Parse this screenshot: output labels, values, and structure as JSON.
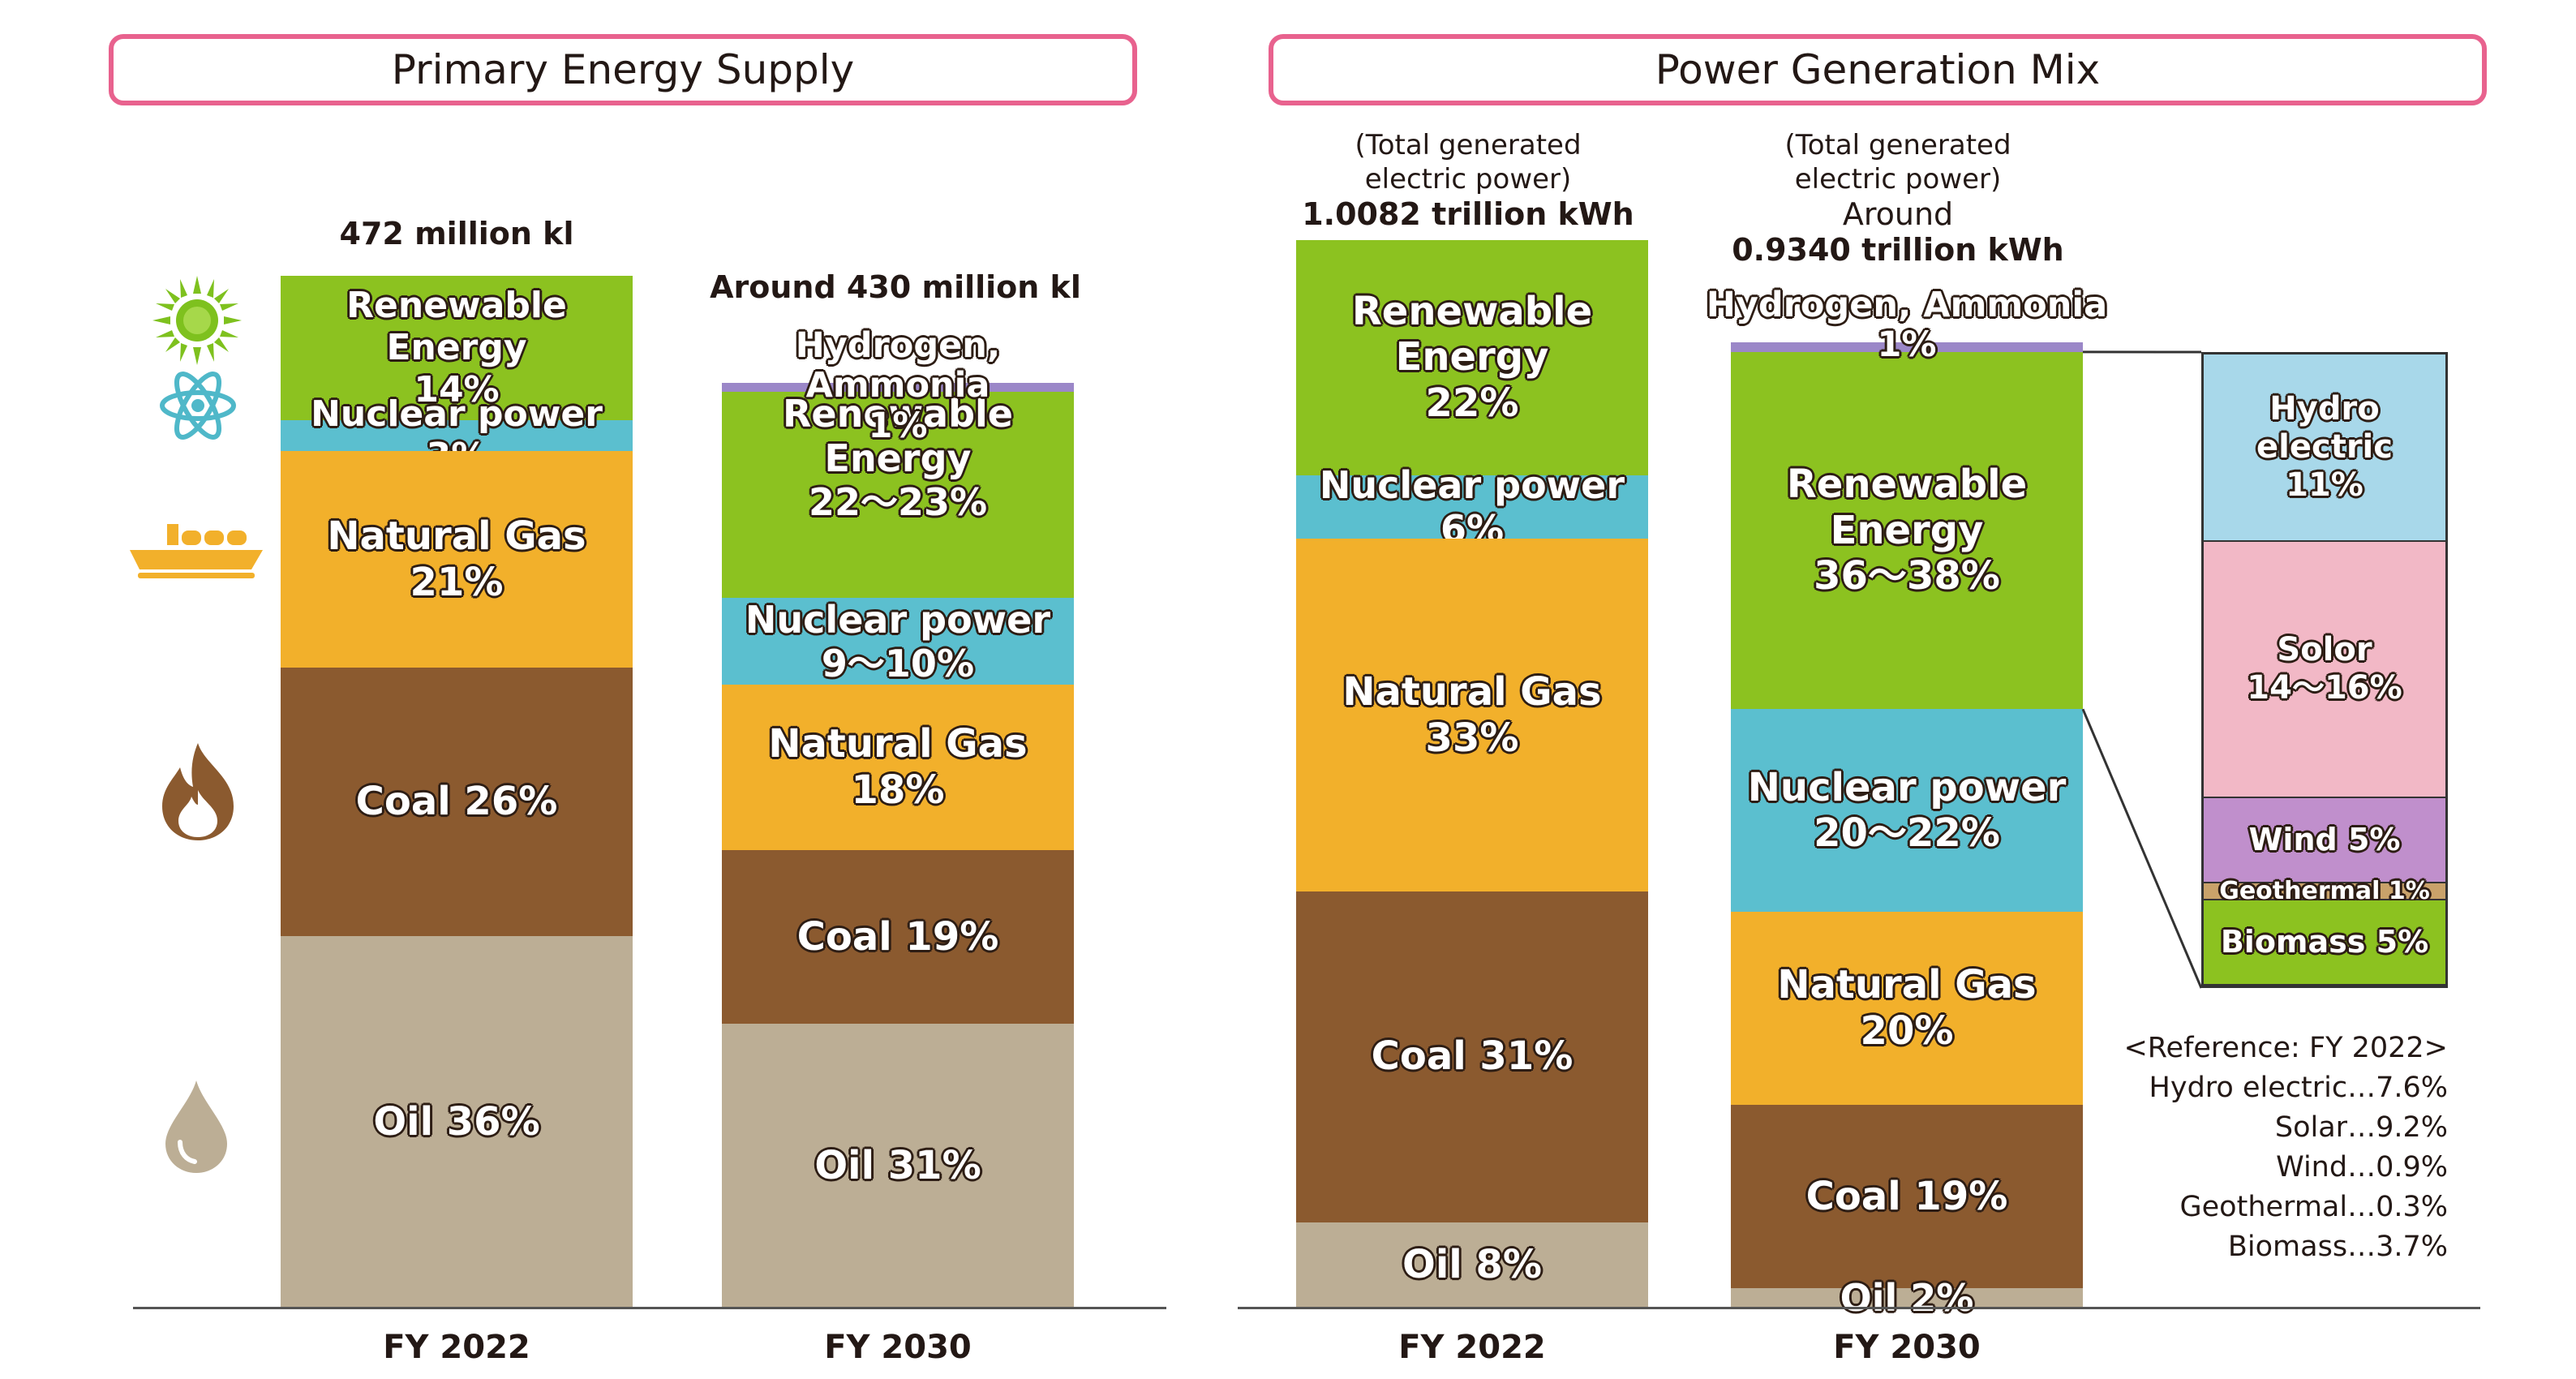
{
  "colors": {
    "renewable": "#8cc220",
    "nuclear": "#5bbfcf",
    "gas": "#f2b02b",
    "coal": "#8b5a2f",
    "oil": "#bcae95",
    "hydrogen": "#9b87c8",
    "hydro": "#a8d8ea",
    "solar": "#f2b8c6",
    "wind": "#c08fcc",
    "geothermal": "#c9a26a",
    "biomass": "#8cc220",
    "frame": "#e8628e"
  },
  "icons": [
    "sun-icon",
    "atom-icon",
    "lng-tanker-icon",
    "flame-icon",
    "oil-drop-icon"
  ],
  "primary": {
    "title": "Primary Energy Supply",
    "fy2022": {
      "label": "FY 2022",
      "total": "472 million kl",
      "segments": [
        {
          "text": "Renewable Energy\n14%",
          "value": 14
        },
        {
          "text": "Nuclear power 3%",
          "value": 3
        },
        {
          "text": "Natural Gas\n21%",
          "value": 21
        },
        {
          "text": "Coal 26%",
          "value": 26
        },
        {
          "text": "Oil 36%",
          "value": 36
        }
      ]
    },
    "fy2030": {
      "label": "FY 2030",
      "total": "Around 430 million kl",
      "segments": [
        {
          "text": "Hydrogen, Ammonia\n1%",
          "value": 1
        },
        {
          "text": "Renewable Energy\n22～23%",
          "value": 22.5
        },
        {
          "text": "Nuclear power\n9～10%",
          "value": 9.5
        },
        {
          "text": "Natural Gas\n18%",
          "value": 18
        },
        {
          "text": "Coal 19%",
          "value": 19
        },
        {
          "text": "Oil 31%",
          "value": 31
        }
      ]
    }
  },
  "power": {
    "title": "Power Generation Mix",
    "fy2022": {
      "label": "FY 2022",
      "note": "(Total generated\nelectric power)",
      "total": "1.0082 trillion kWh",
      "segments": [
        {
          "text": "Renewable\nEnergy\n22%",
          "value": 22
        },
        {
          "text": "Nuclear power 6%",
          "value": 6
        },
        {
          "text": "Natural Gas\n33%",
          "value": 33
        },
        {
          "text": "Coal 31%",
          "value": 31
        },
        {
          "text": "Oil 8%",
          "value": 8
        }
      ]
    },
    "fy2030": {
      "label": "FY 2030",
      "note": "(Total generated\nelectric power)",
      "around": "Around",
      "total": "0.9340 trillion kWh",
      "segments": [
        {
          "text": "Hydrogen, Ammonia\n1%",
          "value": 1
        },
        {
          "text": "Renewable\nEnergy\n36～38%",
          "value": 37
        },
        {
          "text": "Nuclear power\n20～22%",
          "value": 21
        },
        {
          "text": "Natural Gas\n20%",
          "value": 20
        },
        {
          "text": "Coal 19%",
          "value": 19
        },
        {
          "text": "Oil 2%",
          "value": 2
        }
      ]
    },
    "renewable_breakdown": [
      {
        "text": "Hydro\nelectric\n11%",
        "value": 11
      },
      {
        "text": "Solor\n14～16%",
        "value": 15
      },
      {
        "text": "Wind 5%",
        "value": 5
      },
      {
        "text": "Geothermal 1%",
        "value": 1
      },
      {
        "text": "Biomass 5%",
        "value": 5
      }
    ],
    "reference": {
      "title": "<Reference: FY 2022>",
      "items": [
        "Hydro electric…7.6%",
        "Solar…9.2%",
        "Wind…0.9%",
        "Geothermal…0.3%",
        "Biomass…3.7%"
      ]
    }
  },
  "chart_data": [
    {
      "type": "bar",
      "title": "Primary Energy Supply",
      "categories": [
        "FY 2022",
        "FY 2030"
      ],
      "stacked": true,
      "unit": "%",
      "series": [
        {
          "name": "Renewable Energy",
          "values": [
            14,
            22.5
          ]
        },
        {
          "name": "Nuclear power",
          "values": [
            3,
            9.5
          ]
        },
        {
          "name": "Natural Gas",
          "values": [
            21,
            18
          ]
        },
        {
          "name": "Coal",
          "values": [
            26,
            19
          ]
        },
        {
          "name": "Oil",
          "values": [
            36,
            31
          ]
        },
        {
          "name": "Hydrogen, Ammonia",
          "values": [
            0,
            1
          ]
        }
      ],
      "totals": [
        "472 million kl",
        "Around 430 million kl"
      ]
    },
    {
      "type": "bar",
      "title": "Power Generation Mix",
      "categories": [
        "FY 2022",
        "FY 2030"
      ],
      "stacked": true,
      "unit": "%",
      "series": [
        {
          "name": "Renewable Energy",
          "values": [
            22,
            37
          ]
        },
        {
          "name": "Nuclear power",
          "values": [
            6,
            21
          ]
        },
        {
          "name": "Natural Gas",
          "values": [
            33,
            20
          ]
        },
        {
          "name": "Coal",
          "values": [
            31,
            19
          ]
        },
        {
          "name": "Oil",
          "values": [
            8,
            2
          ]
        },
        {
          "name": "Hydrogen, Ammonia",
          "values": [
            0,
            1
          ]
        }
      ],
      "totals": [
        "1.0082 trillion kWh",
        "0.9340 trillion kWh"
      ]
    },
    {
      "type": "bar",
      "categories": [
        "FY 2030"
      ],
      "stacked": true,
      "unit": "%",
      "series": [
        {
          "name": "Hydro electric",
          "values": [
            11
          ]
        },
        {
          "name": "Solor",
          "values": [
            15
          ]
        },
        {
          "name": "Wind",
          "values": [
            5
          ]
        },
        {
          "name": "Geothermal",
          "values": [
            1
          ]
        },
        {
          "name": "Biomass",
          "values": [
            5
          ]
        }
      ]
    }
  ]
}
